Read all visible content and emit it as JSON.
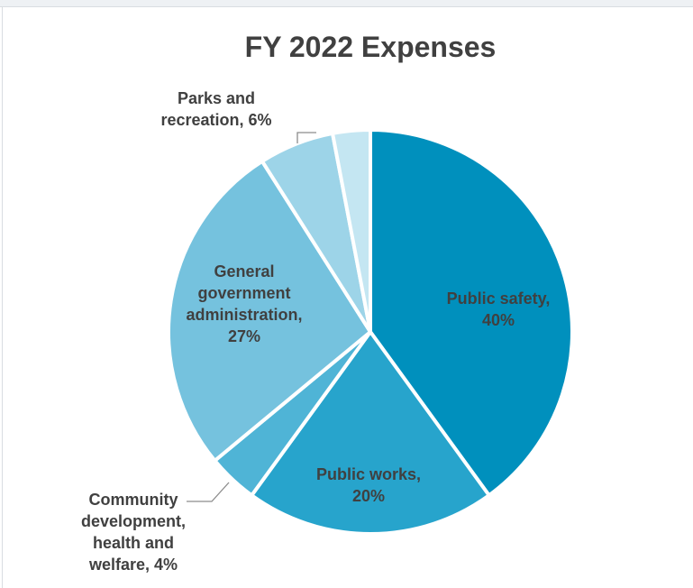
{
  "chart_data": {
    "type": "pie",
    "title": "FY 2022 Expenses",
    "slices": [
      {
        "name": "Public safety",
        "value": 40,
        "label_lines": [
          "Public safety,",
          "40%"
        ],
        "color": "#0090bd"
      },
      {
        "name": "Public works",
        "value": 20,
        "label_lines": [
          "Public works,",
          "20%"
        ],
        "color": "#27a4cc"
      },
      {
        "name": "Community development, health and welfare",
        "value": 4,
        "label_lines": [
          "Community",
          "development,",
          "health and",
          "welfare, 4%"
        ],
        "color": "#4fb4d6"
      },
      {
        "name": "General government administration",
        "value": 27,
        "label_lines": [
          "General",
          "government",
          "administration,",
          "27%"
        ],
        "color": "#75c2de"
      },
      {
        "name": "Parks and recreation",
        "value": 6,
        "label_lines": [
          "Parks and",
          "recreation, 6%"
        ],
        "color": "#9dd4e8"
      },
      {
        "name": "",
        "value": 3,
        "label_lines": [],
        "color": "#c4e6f2"
      }
    ],
    "start_angle_deg": 0,
    "direction": "clockwise",
    "legend": "none"
  }
}
